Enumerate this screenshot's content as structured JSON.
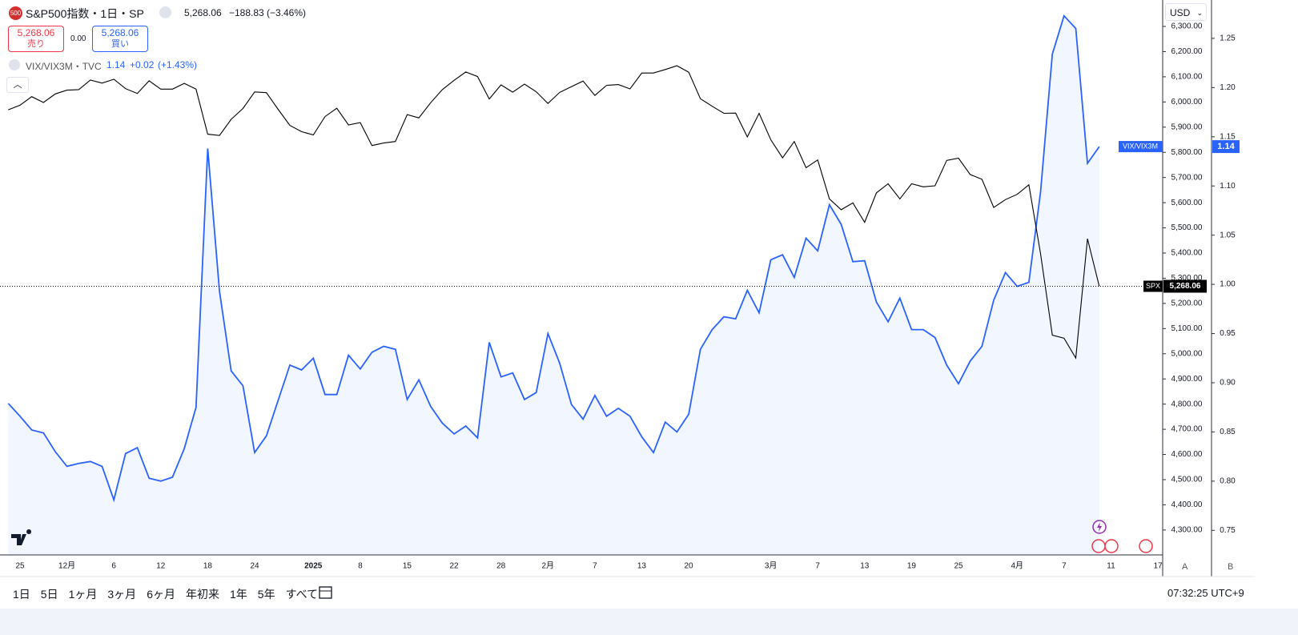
{
  "header": {
    "logo": "500",
    "symbol": "S&P500指数・1日・SP",
    "price": "5,268.06",
    "change": "−188.83",
    "change_pct": "(−3.46%)",
    "sell_price": "5,268.06",
    "sell": "売り",
    "spread": "0.00",
    "buy_price": "5,268.06",
    "buy": "買い",
    "overlay": "VIX/VIX3M・TVC",
    "overlay_price": "1.14",
    "overlay_change": "+0.02",
    "overlay_change_pct": "(+1.43%)",
    "currency": "USD"
  },
  "chart_data": {
    "type": "line",
    "categories": [
      null,
      "25",
      null,
      null,
      null,
      "12月",
      null,
      null,
      null,
      "6",
      null,
      null,
      null,
      "12",
      null,
      null,
      null,
      "18",
      null,
      null,
      null,
      "24",
      null,
      null,
      null,
      null,
      "2025",
      null,
      null,
      null,
      "8",
      null,
      null,
      null,
      "15",
      null,
      null,
      null,
      "22",
      null,
      null,
      null,
      "28",
      null,
      null,
      null,
      "2月",
      null,
      null,
      null,
      "7",
      null,
      null,
      null,
      "13",
      null,
      null,
      null,
      "20",
      null,
      null,
      null,
      null,
      null,
      null,
      "3月",
      null,
      null,
      null,
      "7",
      null,
      null,
      null,
      "13",
      null,
      null,
      null,
      "19",
      null,
      null,
      null,
      "25",
      null,
      null,
      null,
      null,
      "4月",
      null,
      null,
      null,
      "7",
      null,
      null,
      null,
      "11",
      null,
      null,
      null,
      "17"
    ],
    "series": [
      {
        "name": "SPX",
        "color": "#000000",
        "axis": "y",
        "last_label": "5,268.06",
        "values": [
          5969,
          5987,
          6021,
          5998,
          6032,
          6047,
          6049,
          6087,
          6075,
          6090,
          6053,
          6034,
          6084,
          6051,
          6051,
          6074,
          6051,
          5872,
          5867,
          5931,
          5974,
          6040,
          6037,
          5971,
          5907,
          5882,
          5869,
          5942,
          5975,
          5909,
          5918,
          5827,
          5837,
          5843,
          5950,
          5937,
          5997,
          6049,
          6086,
          6119,
          6101,
          6012,
          6068,
          6039,
          6071,
          6041,
          5994,
          6038,
          6061,
          6083,
          6026,
          6066,
          6069,
          6052,
          6115,
          6115,
          6129,
          6144,
          6118,
          6013,
          5983,
          5955,
          5956,
          5861,
          5955,
          5850,
          5778,
          5843,
          5739,
          5770,
          5615,
          5572,
          5599,
          5522,
          5639,
          5675,
          5615,
          5675,
          5663,
          5667,
          5768,
          5777,
          5712,
          5693,
          5581,
          5612,
          5633,
          5671,
          5397,
          5074,
          5062,
          4983,
          5457,
          5268.06,
          null,
          null,
          null,
          null,
          null
        ]
      },
      {
        "name": "VIX/VIX3M",
        "color": "#2962ff",
        "axis": "y2",
        "area": true,
        "last_label": "1.14",
        "values": [
          0.879,
          0.866,
          0.852,
          0.849,
          0.83,
          0.815,
          0.818,
          0.82,
          0.815,
          0.781,
          0.828,
          0.834,
          0.803,
          0.8,
          0.804,
          0.833,
          0.875,
          1.138,
          0.993,
          0.912,
          0.897,
          0.829,
          0.846,
          0.882,
          0.918,
          0.913,
          0.925,
          0.888,
          0.888,
          0.928,
          0.914,
          0.931,
          0.937,
          0.934,
          0.883,
          0.903,
          0.876,
          0.859,
          0.848,
          0.856,
          0.844,
          0.941,
          0.906,
          0.91,
          0.883,
          0.89,
          0.95,
          0.92,
          0.878,
          0.863,
          0.887,
          0.866,
          0.874,
          0.866,
          0.845,
          0.829,
          0.86,
          0.85,
          0.868,
          0.934,
          0.954,
          0.967,
          0.965,
          0.994,
          0.971,
          1.025,
          1.03,
          1.007,
          1.047,
          1.034,
          1.081,
          1.061,
          1.023,
          1.024,
          0.982,
          0.962,
          0.986,
          0.954,
          0.954,
          0.946,
          0.918,
          0.899,
          0.922,
          0.937,
          0.984,
          1.012,
          0.998,
          1.002,
          1.094,
          1.234,
          1.273,
          1.26,
          1.123,
          1.14,
          null,
          null,
          null,
          null,
          null
        ]
      }
    ],
    "ylim": [
      4201,
      6405
    ],
    "yticks": [
      {
        "value": 4300,
        "label": "4,300.00"
      },
      {
        "value": 4400,
        "label": "4,400.00"
      },
      {
        "value": 4500,
        "label": "4,500.00"
      },
      {
        "value": 4600,
        "label": "4,600.00"
      },
      {
        "value": 4700,
        "label": "4,700.00"
      },
      {
        "value": 4800,
        "label": "4,800.00"
      },
      {
        "value": 4900,
        "label": "4,900.00"
      },
      {
        "value": 5000,
        "label": "5,000.00"
      },
      {
        "value": 5100,
        "label": "5,100.00"
      },
      {
        "value": 5200,
        "label": "5,200.00"
      },
      {
        "value": 5300,
        "label": "5,300.00"
      },
      {
        "value": 5400,
        "label": "5,400.00"
      },
      {
        "value": 5500,
        "label": "5,500.00"
      },
      {
        "value": 5600,
        "label": "5,600.00"
      },
      {
        "value": 5700,
        "label": "5,700.00"
      },
      {
        "value": 5800,
        "label": "5,800.00"
      },
      {
        "value": 5900,
        "label": "5,900.00"
      },
      {
        "value": 6000,
        "label": "6,000.00"
      },
      {
        "value": 6100,
        "label": "6,100.00"
      },
      {
        "value": 6200,
        "label": "6,200.00"
      },
      {
        "value": 6300,
        "label": "6,300.00"
      }
    ],
    "y2lim": [
      0.725,
      1.289
    ],
    "y2ticks": [
      0.75,
      {
        "value": 0.8,
        "label": "0.80"
      },
      0.85,
      {
        "value": 0.9,
        "label": "0.90"
      },
      0.95,
      {
        "value": 1,
        "label": "1.00"
      },
      1.05,
      {
        "value": 1.1,
        "label": "1.10"
      },
      1.15,
      {
        "value": 1.2,
        "label": "1.20"
      },
      1.25
    ],
    "grid": false
  },
  "footer": {
    "ranges": [
      "1日",
      "5日",
      "1ヶ月",
      "3ヶ月",
      "6ヶ月",
      "年初来",
      "1年",
      "5年",
      "すべて"
    ],
    "clock": "07:32:25 UTC+9",
    "scale_a": "A",
    "scale_b": "B"
  }
}
